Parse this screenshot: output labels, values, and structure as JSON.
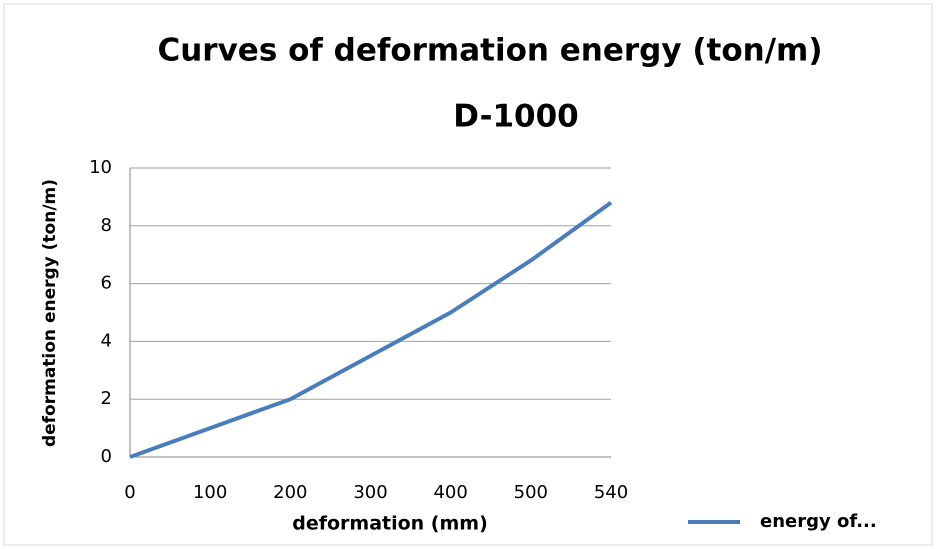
{
  "chart_data": {
    "type": "line",
    "title": "Curves of deformation energy (ton/m)",
    "subtitle": "D-1000",
    "x_label": "deformation (mm)",
    "y_label": "deformation energy (ton/m)",
    "categories": [
      "0",
      "100",
      "200",
      "300",
      "400",
      "500",
      "540"
    ],
    "series": [
      {
        "name": "energy of...",
        "color": "#4a7ebb",
        "values": [
          0,
          1.0,
          2.0,
          3.5,
          5.0,
          6.8,
          8.8
        ]
      }
    ],
    "ylim": [
      0,
      10
    ],
    "yticks": [
      0,
      2,
      4,
      6,
      8,
      10
    ],
    "grid": true,
    "legend": "bottom-right"
  }
}
